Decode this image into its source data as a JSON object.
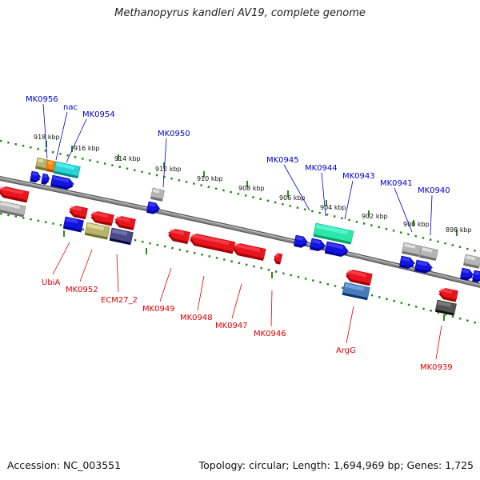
{
  "title": "Methanopyrus kandleri AV19, complete genome",
  "footer": {
    "accession": "Accession: NC_003551",
    "stats": "Topology: circular; Length: 1,694,969 bp; Genes: 1,725"
  },
  "colors": {
    "backbone": "#888888",
    "scale_dots": "#2a8a1e",
    "upper_label": "#0000cc",
    "lower_label": "#dd0000",
    "cds_red": "#e8141e",
    "cds_blue": "#1414e0",
    "gray": "#b5b5b5",
    "teal": "#2ed2d2",
    "seafoam": "#2ee6a8",
    "olive": "#b8b470",
    "orange": "#f08a14",
    "slate": "#4a4a88",
    "steel": "#4a7ab8",
    "dark": "#555555"
  },
  "scale_ticks": [
    {
      "label": "918 kbp"
    },
    {
      "label": "916 kbp"
    },
    {
      "label": "914 kbp"
    },
    {
      "label": "912 kbp"
    },
    {
      "label": "910 kbp"
    },
    {
      "label": "908 kbp"
    },
    {
      "label": "906 kbp"
    },
    {
      "label": "904 kbp"
    },
    {
      "label": "902 kbp"
    },
    {
      "label": "900 kbp"
    },
    {
      "label": "898 kbp"
    }
  ],
  "upper_gene_labels": [
    "MK0956",
    "nac",
    "MK0954",
    "MK0950",
    "MK0945",
    "MK0944",
    "MK0943",
    "MK0941",
    "MK0940"
  ],
  "lower_gene_labels": [
    "UbiA",
    "MK0952",
    "ECM27_2",
    "MK0949",
    "MK0948",
    "MK0947",
    "MK0946",
    "ArgG",
    "MK0939"
  ]
}
